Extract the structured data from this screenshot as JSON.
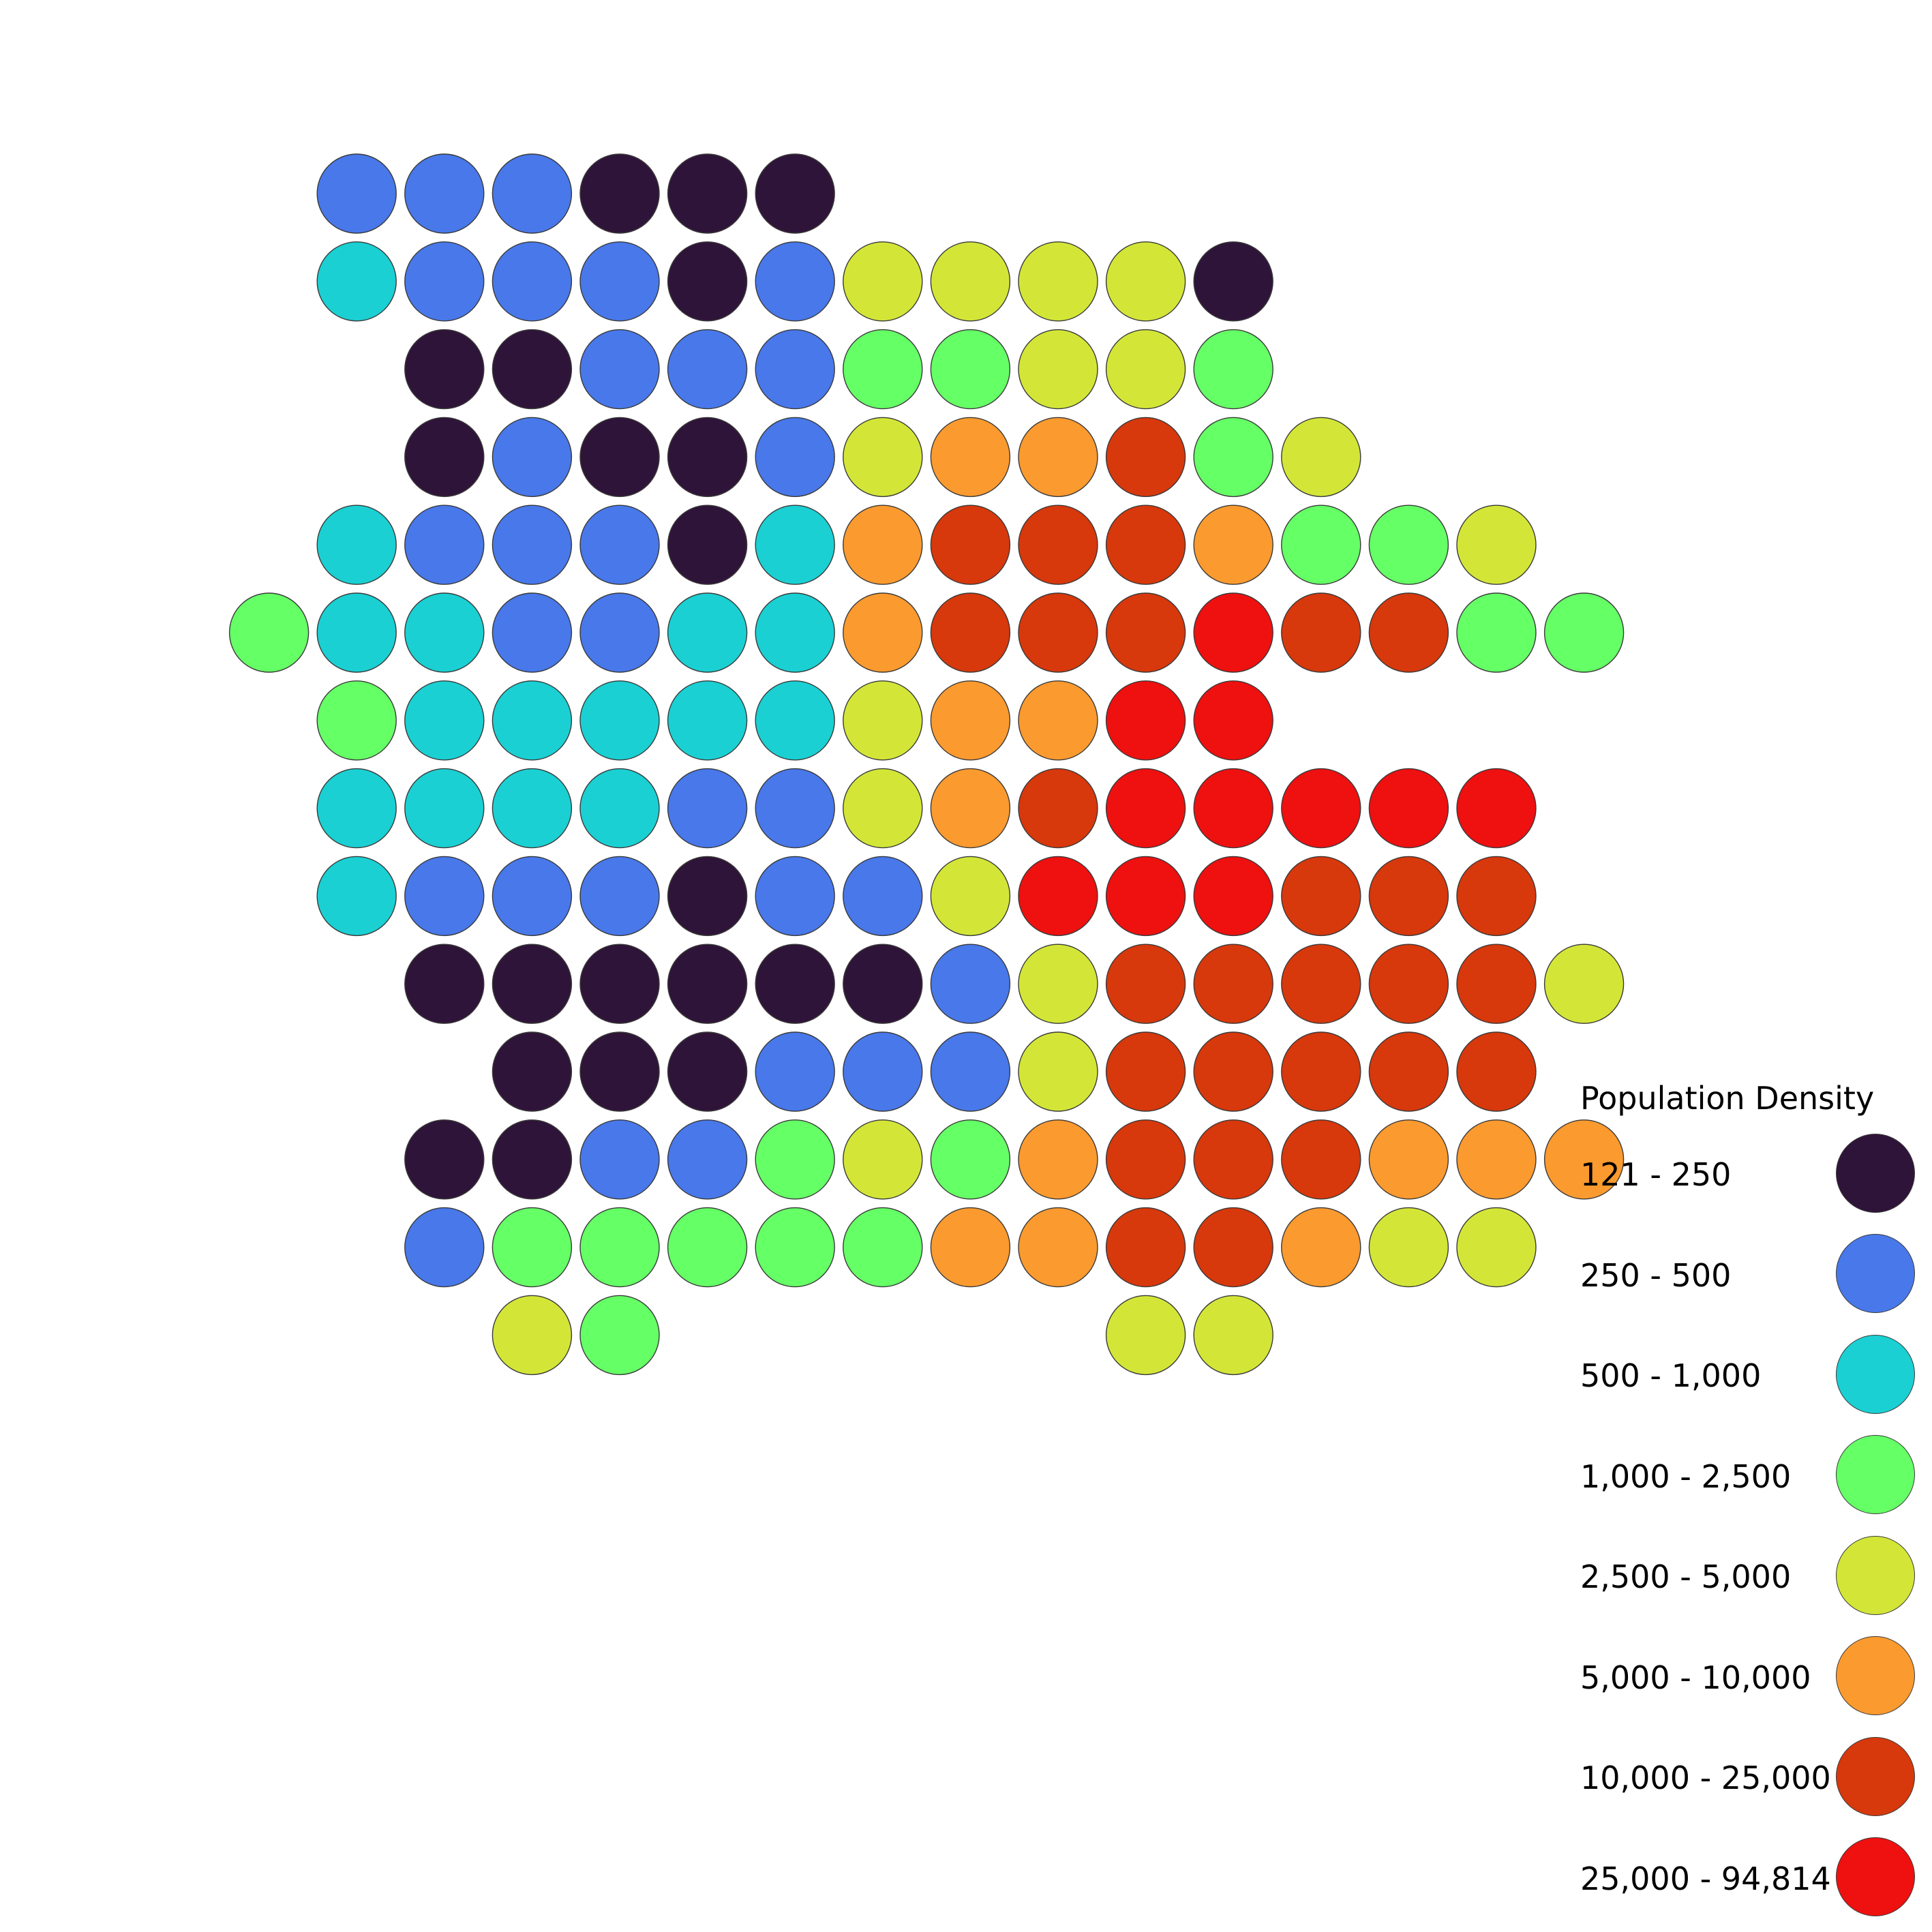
{
  "legend": {
    "title": "Population Density",
    "classes": [
      {
        "label": "121 - 250",
        "color": "#2f1439"
      },
      {
        "label": "250 - 500",
        "color": "#4878ea"
      },
      {
        "label": "500 - 1,000",
        "color": "#1ad0d3"
      },
      {
        "label": "1,000 - 2,500",
        "color": "#65ff66"
      },
      {
        "label": "2,500 - 5,000",
        "color": "#d3e638"
      },
      {
        "label": "5,000 - 10,000",
        "color": "#fb9a2f"
      },
      {
        "label": "10,000 - 25,000",
        "color": "#d7380c"
      },
      {
        "label": "25,000 - 94,814",
        "color": "#ef1010"
      }
    ]
  },
  "grid": {
    "rows": [
      "..111000.........",
      "..21110144440....",
      "...0011133443....",
      "...01001455634...",
      "..21110256665334.",
      ".3221122566676633",
      "..32222245577....",
      "..22221145677777.",
      "..21110114777666.",
      "...00000014666664",
      "....000111466666S",
      "...00113435666555",
      "...1333335566544.",
      "....43.....44...."
    ]
  }
}
